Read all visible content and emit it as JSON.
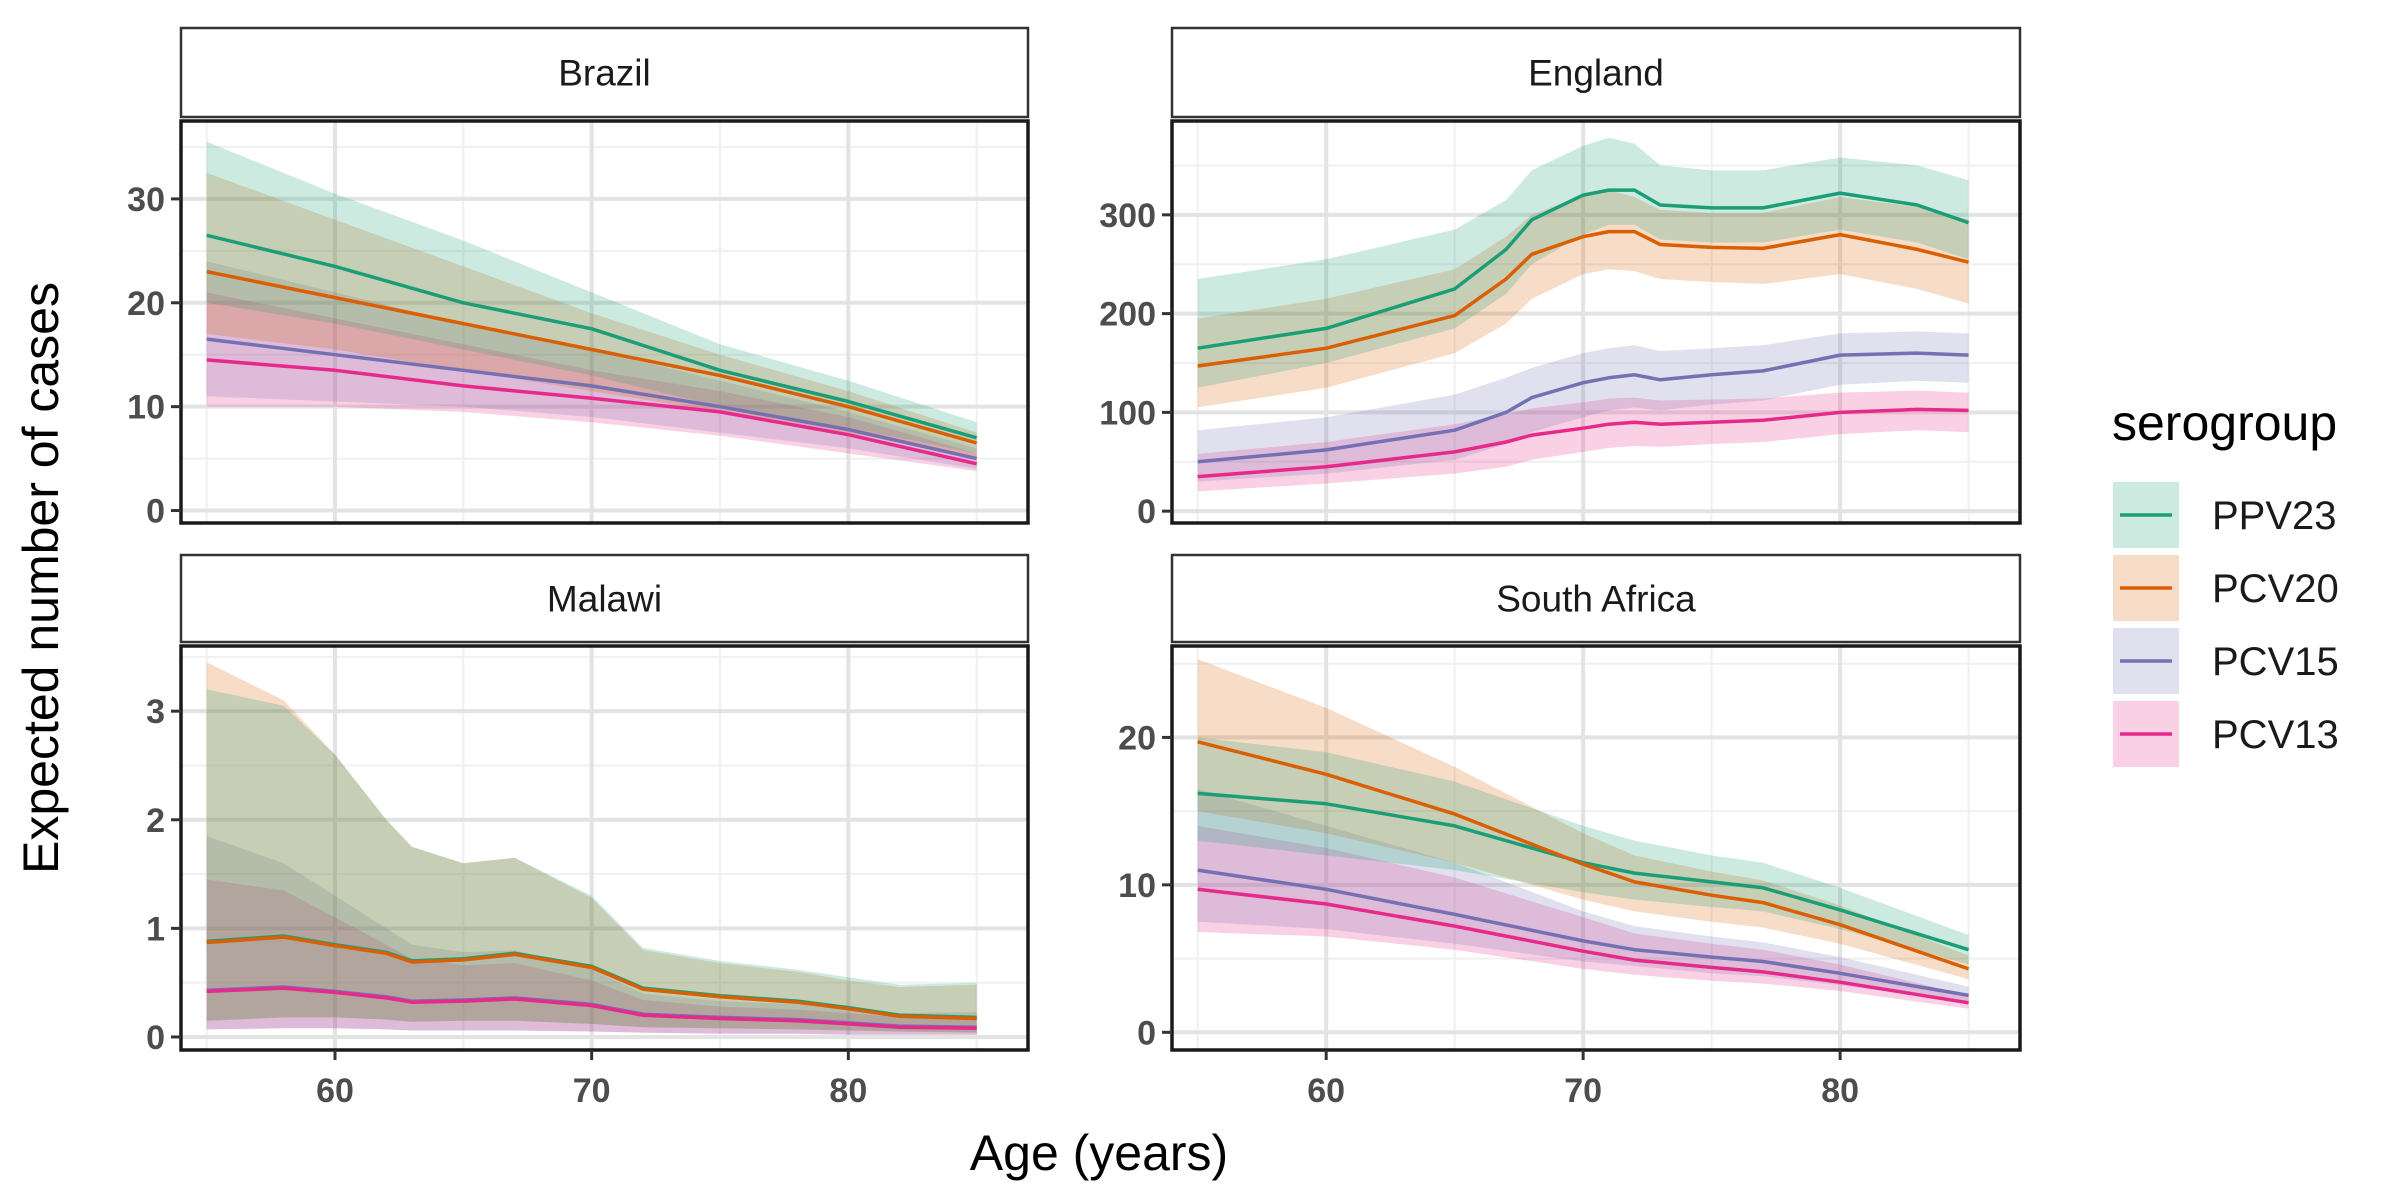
{
  "chart_data": {
    "type": "line",
    "xlabel": "Age (years)",
    "ylabel": "Expected number of cases",
    "x_ticks": [
      60,
      70,
      80
    ],
    "xlim": [
      54,
      87
    ],
    "legend": {
      "title": "serogroup",
      "placement": "right",
      "entries": [
        "PPV23",
        "PCV20",
        "PCV15",
        "PCV13"
      ]
    },
    "colors": {
      "PPV23": "#1b9e77",
      "PCV20": "#d95f02",
      "PCV15": "#7570b3",
      "PCV13": "#e7298a"
    },
    "panels": [
      {
        "title": "Brazil",
        "ylim": [
          -1.2,
          37.5
        ],
        "y_ticks": [
          0,
          10,
          20,
          30
        ],
        "x": [
          55,
          60,
          65,
          70,
          75,
          80,
          85
        ],
        "series": [
          {
            "name": "PPV23",
            "values": [
              26.5,
              23.5,
              20,
              17.5,
              13.5,
              10.5,
              7
            ],
            "lower": [
              20,
              18,
              15.5,
              13,
              10,
              8,
              5.5
            ],
            "upper": [
              35.5,
              30.5,
              26,
              21,
              16,
              12.5,
              8.5
            ]
          },
          {
            "name": "PCV20",
            "values": [
              23,
              20.5,
              18,
              15.5,
              13,
              10,
              6.5
            ],
            "lower": [
              17,
              15.5,
              13.5,
              11.5,
              9.5,
              7.5,
              5
            ],
            "upper": [
              32.5,
              28,
              23.5,
              19,
              15,
              11.5,
              7.5
            ]
          },
          {
            "name": "PCV15",
            "values": [
              16.5,
              15,
              13.5,
              12,
              10,
              7.8,
              5
            ],
            "lower": [
              11,
              10.5,
              10,
              9,
              7.5,
              6,
              4
            ],
            "upper": [
              24,
              21,
              18,
              15.5,
              12.5,
              9.5,
              6
            ]
          },
          {
            "name": "PCV13",
            "values": [
              14.5,
              13.5,
              12,
              10.8,
              9.5,
              7.3,
              4.5
            ],
            "lower": [
              10,
              10,
              9.5,
              8.5,
              7.2,
              5.5,
              3.8
            ],
            "upper": [
              21,
              18.5,
              16,
              13.5,
              11.5,
              9,
              5.5
            ]
          }
        ]
      },
      {
        "title": "England",
        "ylim": [
          -12,
          395
        ],
        "y_ticks": [
          0,
          100,
          200,
          300
        ],
        "x": [
          55,
          60,
          65,
          67,
          68,
          70,
          71,
          72,
          73,
          75,
          77,
          80,
          83,
          85
        ],
        "series": [
          {
            "name": "PPV23",
            "values": [
              165,
              185,
              225,
              265,
              295,
              320,
              325,
              325,
              310,
              307,
              307,
              322,
              310,
              292
            ],
            "lower": [
              125,
              150,
              185,
              220,
              250,
              280,
              290,
              290,
              275,
              272,
              272,
              285,
              272,
              255
            ],
            "upper": [
              235,
              255,
              285,
              315,
              345,
              370,
              378,
              372,
              350,
              345,
              345,
              358,
              350,
              335
            ]
          },
          {
            "name": "PCV20",
            "values": [
              147,
              165,
              198,
              235,
              260,
              278,
              283,
              283,
              270,
              267,
              266,
              280,
              265,
              252
            ],
            "lower": [
              105,
              125,
              160,
              190,
              215,
              240,
              245,
              243,
              235,
              232,
              230,
              240,
              225,
              210
            ],
            "upper": [
              195,
              215,
              245,
              278,
              300,
              320,
              325,
              318,
              305,
              302,
              302,
              318,
              308,
              295
            ]
          },
          {
            "name": "PCV15",
            "values": [
              50,
              62,
              82,
              100,
              115,
              130,
              135,
              138,
              133,
              138,
              142,
              158,
              160,
              158
            ],
            "lower": [
              30,
              38,
              52,
              68,
              80,
              95,
              102,
              105,
              102,
              108,
              112,
              128,
              132,
              130
            ],
            "upper": [
              82,
              95,
              118,
              135,
              145,
              160,
              165,
              168,
              162,
              165,
              168,
              180,
              182,
              180
            ]
          },
          {
            "name": "PCV13",
            "values": [
              35,
              45,
              60,
              70,
              77,
              84,
              88,
              90,
              88,
              90,
              92,
              100,
              103,
              102
            ],
            "lower": [
              20,
              28,
              38,
              45,
              52,
              60,
              64,
              66,
              65,
              68,
              70,
              78,
              82,
              80
            ],
            "upper": [
              58,
              70,
              88,
              98,
              104,
              110,
              114,
              115,
              112,
              113,
              114,
              120,
              122,
              120
            ]
          }
        ]
      },
      {
        "title": "Malawi",
        "ylim": [
          -0.12,
          3.6
        ],
        "y_ticks": [
          0,
          1,
          2,
          3
        ],
        "x": [
          55,
          58,
          60,
          62,
          63,
          65,
          67,
          70,
          72,
          75,
          78,
          80,
          82,
          85
        ],
        "series": [
          {
            "name": "PPV23",
            "values": [
              0.88,
              0.93,
              0.85,
              0.78,
              0.7,
              0.72,
              0.77,
              0.65,
              0.45,
              0.38,
              0.33,
              0.27,
              0.2,
              0.18
            ],
            "lower": [
              0.15,
              0.18,
              0.18,
              0.16,
              0.14,
              0.15,
              0.15,
              0.12,
              0.09,
              0.08,
              0.07,
              0.06,
              0.05,
              0.04
            ],
            "upper": [
              3.2,
              3.05,
              2.6,
              2.0,
              1.75,
              1.6,
              1.65,
              1.3,
              0.82,
              0.7,
              0.62,
              0.55,
              0.48,
              0.5
            ]
          },
          {
            "name": "PCV20",
            "values": [
              0.87,
              0.92,
              0.84,
              0.77,
              0.69,
              0.71,
              0.76,
              0.64,
              0.44,
              0.37,
              0.32,
              0.26,
              0.19,
              0.17
            ],
            "lower": [
              0.15,
              0.18,
              0.18,
              0.16,
              0.14,
              0.15,
              0.15,
              0.12,
              0.09,
              0.08,
              0.07,
              0.06,
              0.05,
              0.04
            ],
            "upper": [
              3.45,
              3.1,
              2.6,
              2.0,
              1.75,
              1.6,
              1.65,
              1.28,
              0.8,
              0.68,
              0.6,
              0.52,
              0.46,
              0.48
            ]
          },
          {
            "name": "PCV15",
            "values": [
              0.43,
              0.46,
              0.42,
              0.37,
              0.33,
              0.34,
              0.36,
              0.3,
              0.21,
              0.18,
              0.16,
              0.13,
              0.1,
              0.09
            ],
            "lower": [
              0.07,
              0.08,
              0.08,
              0.07,
              0.06,
              0.06,
              0.06,
              0.05,
              0.04,
              0.03,
              0.03,
              0.02,
              0.02,
              0.02
            ],
            "upper": [
              1.85,
              1.6,
              1.3,
              1.0,
              0.85,
              0.78,
              0.8,
              0.62,
              0.4,
              0.33,
              0.3,
              0.26,
              0.22,
              0.23
            ]
          },
          {
            "name": "PCV13",
            "values": [
              0.42,
              0.45,
              0.41,
              0.36,
              0.32,
              0.33,
              0.35,
              0.29,
              0.2,
              0.17,
              0.15,
              0.12,
              0.09,
              0.08
            ],
            "lower": [
              0.07,
              0.08,
              0.08,
              0.07,
              0.06,
              0.06,
              0.06,
              0.05,
              0.04,
              0.03,
              0.03,
              0.02,
              0.02,
              0.02
            ],
            "upper": [
              1.45,
              1.35,
              1.1,
              0.85,
              0.72,
              0.66,
              0.68,
              0.52,
              0.34,
              0.28,
              0.25,
              0.22,
              0.18,
              0.18
            ]
          }
        ]
      },
      {
        "title": "South Africa",
        "ylim": [
          -1.2,
          26.2
        ],
        "y_ticks": [
          0,
          10,
          20
        ],
        "x": [
          55,
          60,
          65,
          70,
          72,
          75,
          77,
          80,
          85
        ],
        "series": [
          {
            "name": "PPV23",
            "values": [
              16.2,
              15.5,
              14,
              11.5,
              10.8,
              10.2,
              9.8,
              8.3,
              5.6
            ],
            "lower": [
              13,
              12,
              11,
              9.5,
              9,
              8.5,
              8.2,
              7,
              4.6
            ],
            "upper": [
              20,
              19,
              17,
              14,
              13,
              12,
              11.5,
              9.8,
              6.6
            ]
          },
          {
            "name": "PCV20",
            "values": [
              19.7,
              17.5,
              14.8,
              11.4,
              10.2,
              9.3,
              8.8,
              7.3,
              4.3
            ],
            "lower": [
              15,
              13.5,
              11.5,
              9,
              8.2,
              7.5,
              7.1,
              6,
              3.6
            ],
            "upper": [
              25.3,
              22,
              18,
              13.5,
              12,
              10.9,
              10.3,
              8.6,
              5.2
            ]
          },
          {
            "name": "PCV15",
            "values": [
              11,
              9.7,
              8,
              6.2,
              5.6,
              5.1,
              4.8,
              4,
              2.5
            ],
            "lower": [
              7.5,
              7,
              6,
              4.8,
              4.5,
              4,
              3.8,
              3.2,
              2
            ],
            "upper": [
              16.5,
              14,
              11.5,
              8.2,
              7.2,
              6.5,
              6.1,
              5.1,
              3.1
            ]
          },
          {
            "name": "PCV13",
            "values": [
              9.7,
              8.7,
              7.2,
              5.5,
              4.9,
              4.4,
              4.1,
              3.4,
              2
            ],
            "lower": [
              6.8,
              6.5,
              5.6,
              4.3,
              3.9,
              3.5,
              3.3,
              2.8,
              1.6
            ],
            "upper": [
              14,
              12.5,
              10.5,
              7.8,
              6.7,
              6,
              5.6,
              4.6,
              2.5
            ]
          }
        ]
      }
    ]
  }
}
